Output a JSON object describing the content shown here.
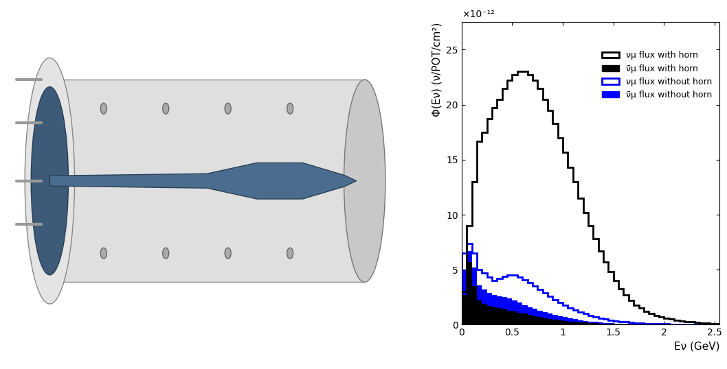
{
  "chart_data": {
    "type": "histogram",
    "y_label": "Φ(Eν) (ν/POT/cm²)",
    "x_label": "Eν (GeV)",
    "y_multiplier": "×10⁻¹²",
    "bins": [
      0,
      0.05,
      0.1,
      0.15,
      0.2,
      0.25,
      0.3,
      0.35,
      0.4,
      0.45,
      0.5,
      0.55,
      0.6,
      0.65,
      0.7,
      0.75,
      0.8,
      0.85,
      0.9,
      0.95,
      1.0,
      1.05,
      1.1,
      1.15,
      1.2,
      1.25,
      1.3,
      1.35,
      1.4,
      1.45,
      1.5,
      1.55,
      1.6,
      1.65,
      1.7,
      1.75,
      1.8,
      1.85,
      1.9,
      1.95,
      2.0,
      2.05,
      2.1,
      2.15,
      2.2,
      2.25,
      2.3,
      2.35,
      2.4,
      2.45,
      2.5,
      2.55
    ],
    "series": [
      {
        "name": "νμ flux with horn",
        "color": "#000000",
        "type": "step",
        "values": [
          3,
          9,
          13,
          16.7,
          17.5,
          18.7,
          19.7,
          20.5,
          21.5,
          22.2,
          22.7,
          23,
          23,
          22.7,
          22.2,
          21.5,
          20.5,
          19.5,
          18.3,
          17,
          15.7,
          14.3,
          13,
          11.5,
          10.2,
          9,
          7.8,
          6.7,
          5.7,
          4.8,
          4,
          3.3,
          2.7,
          2.2,
          1.8,
          1.5,
          1.2,
          1.0,
          0.85,
          0.7,
          0.6,
          0.5,
          0.42,
          0.35,
          0.3,
          0.25,
          0.2,
          0.17,
          0.14,
          0.12,
          0.1
        ]
      },
      {
        "name": "ν̄μ flux with horn",
        "color": "#000000",
        "type": "filled_step",
        "values": [
          2.7,
          5.7,
          3.5,
          2.2,
          1.9,
          1.7,
          1.6,
          1.5,
          1.4,
          1.3,
          1.2,
          1.1,
          1.0,
          0.9,
          0.8,
          0.7,
          0.6,
          0.52,
          0.45,
          0.4,
          0.35,
          0.3,
          0.25,
          0.22,
          0.19,
          0.16,
          0.14,
          0.12,
          0.1,
          0.09,
          0.08,
          0.07,
          0.06,
          0.05,
          0.05,
          0.04,
          0.04,
          0.03,
          0.03,
          0.03,
          0.02,
          0.02,
          0.02,
          0.02,
          0.01,
          0.01,
          0.01,
          0.01,
          0.01,
          0.01,
          0.01
        ]
      },
      {
        "name": "νμ flux without horn",
        "color": "#0000ff",
        "type": "step",
        "values": [
          6.5,
          7.4,
          6.5,
          5,
          4.7,
          4.3,
          4.0,
          4.2,
          4.4,
          4.5,
          4.5,
          4.3,
          4.1,
          3.8,
          3.5,
          3.2,
          2.9,
          2.6,
          2.3,
          2.0,
          1.8,
          1.55,
          1.35,
          1.15,
          1.0,
          0.85,
          0.7,
          0.6,
          0.5,
          0.42,
          0.35,
          0.3,
          0.25,
          0.2,
          0.17,
          0.14,
          0.12,
          0.1,
          0.08,
          0.07,
          0.06,
          0.05,
          0.04,
          0.04,
          0.03,
          0.03,
          0.02,
          0.02,
          0.02,
          0.01,
          0.01
        ]
      },
      {
        "name": "ν̄μ flux without horn",
        "color": "#0000ff",
        "type": "filled_step",
        "values": [
          5,
          6.7,
          5.2,
          3.6,
          3.2,
          2.9,
          2.7,
          2.6,
          2.5,
          2.4,
          2.2,
          2.0,
          1.8,
          1.6,
          1.45,
          1.3,
          1.15,
          1.0,
          0.9,
          0.8,
          0.7,
          0.6,
          0.5,
          0.42,
          0.36,
          0.3,
          0.25,
          0.2,
          0.17,
          0.14,
          0.12,
          0.1,
          0.09,
          0.08,
          0.07,
          0.06,
          0.05,
          0.04,
          0.04,
          0.03,
          0.03,
          0.02,
          0.02,
          0.02,
          0.01,
          0.01,
          0.01,
          0.01,
          0.01,
          0.01,
          0.01
        ]
      }
    ],
    "xlim": [
      0,
      2.55
    ],
    "xticks": [
      0,
      0.5,
      1,
      1.5,
      2,
      2.5
    ],
    "ylim": [
      0,
      27.5
    ],
    "yticks": [
      0,
      5,
      10,
      15,
      20,
      25
    ],
    "legend": "upper right",
    "grid": false
  }
}
